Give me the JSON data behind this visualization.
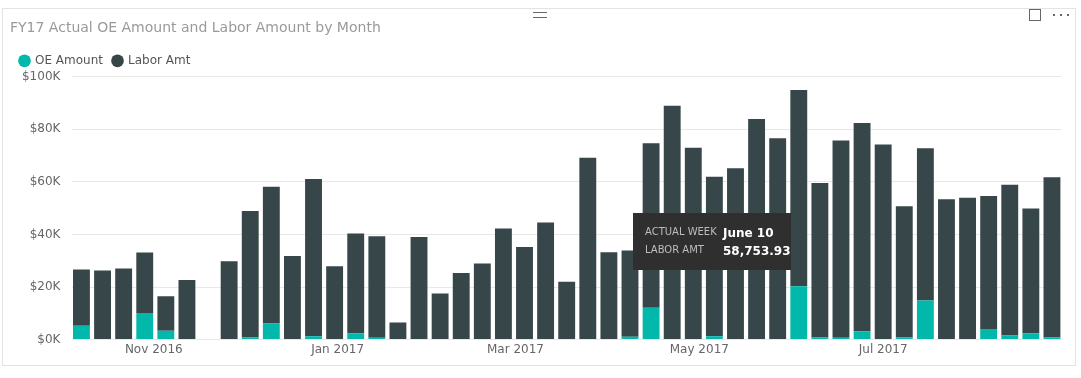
{
  "chart_data": {
    "type": "bar",
    "title": "FY17 Actual OE Amount and Labor Amount by Month",
    "stacked": true,
    "legend": "top left",
    "grid": "y",
    "x": [
      "2016-10-08",
      "2016-10-15",
      "2016-10-22",
      "2016-10-29",
      "2016-11-05",
      "2016-11-12",
      "2016-11-19",
      "2016-11-26",
      "2016-12-03",
      "2016-12-10",
      "2016-12-17",
      "2016-12-24",
      "2016-12-31",
      "2017-01-07",
      "2017-01-14",
      "2017-01-21",
      "2017-01-28",
      "2017-02-04",
      "2017-02-11",
      "2017-02-18",
      "2017-02-25",
      "2017-03-04",
      "2017-03-11",
      "2017-03-18",
      "2017-03-25",
      "2017-04-01",
      "2017-04-08",
      "2017-04-15",
      "2017-04-22",
      "2017-04-29",
      "2017-05-06",
      "2017-05-13",
      "2017-05-20",
      "2017-05-27",
      "2017-06-03",
      "2017-06-10",
      "2017-06-17",
      "2017-06-24",
      "2017-07-01",
      "2017-07-08",
      "2017-07-15",
      "2017-07-22",
      "2017-07-29",
      "2017-08-05",
      "2017-08-12",
      "2017-08-19",
      "2017-08-26"
    ],
    "series": [
      {
        "name": "OE Amount",
        "color": "#01b8aa",
        "values": [
          5300,
          0,
          0,
          10100,
          3400,
          0,
          null,
          0,
          800,
          6100,
          0,
          1300,
          0,
          2400,
          700,
          0,
          0,
          0,
          0,
          0,
          0,
          0,
          0,
          0,
          0,
          null,
          1100,
          12100,
          0,
          0,
          1300,
          null,
          0,
          0,
          20300,
          800,
          700,
          3200,
          0,
          800,
          14900,
          0,
          0,
          4000,
          1600,
          2400,
          800
        ]
      },
      {
        "name": "Labor Amt",
        "color": "#374649",
        "values": [
          21400,
          26300,
          27100,
          23000,
          13100,
          22700,
          null,
          29800,
          48100,
          52100,
          31800,
          59800,
          27900,
          38000,
          38600,
          6500,
          39000,
          17500,
          25300,
          29000,
          42300,
          35200,
          44600,
          22000,
          69200,
          33200,
          32800,
          62600,
          89000,
          73000,
          60700,
          65200,
          83900,
          76600,
          74700,
          58753.93,
          75100,
          79200,
          74200,
          49900,
          57900,
          53400,
          54000,
          50600,
          57300,
          47500,
          61000
        ]
      }
    ],
    "xlim": [
      "2016-10-05",
      "2017-08-29"
    ],
    "xticks": [
      {
        "value": "2016-11-01",
        "label": "Nov 2016"
      },
      {
        "value": "2017-01-01",
        "label": "Jan 2017"
      },
      {
        "value": "2017-03-01",
        "label": "Mar 2017"
      },
      {
        "value": "2017-05-01",
        "label": "May 2017"
      },
      {
        "value": "2017-07-01",
        "label": "Jul 2017"
      }
    ],
    "ylim": [
      0,
      100000
    ],
    "yticks": [
      {
        "value": 0,
        "label": "$0K"
      },
      {
        "value": 20000,
        "label": "$20K"
      },
      {
        "value": 40000,
        "label": "$40K"
      },
      {
        "value": 60000,
        "label": "$60K"
      },
      {
        "value": 80000,
        "label": "$80K"
      },
      {
        "value": 100000,
        "label": "$100K"
      }
    ],
    "annotations": [
      "ACTUAL WEEK",
      "June 10",
      "LABOR AMT",
      "58,753.93"
    ]
  }
}
